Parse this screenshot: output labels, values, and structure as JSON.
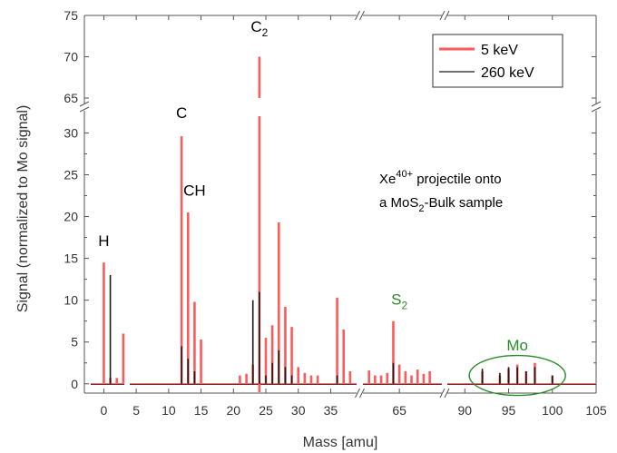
{
  "chart_data": {
    "type": "bar",
    "xlabel": "Mass [amu]",
    "ylabel": "Signal (normalized to Mo signal)",
    "y_lower_range": [
      -1,
      32
    ],
    "y_upper_range": [
      65,
      75
    ],
    "y_lower_ticks": [
      "0",
      "5",
      "10",
      "15",
      "20",
      "25",
      "30"
    ],
    "y_upper_ticks": [
      "65",
      "70",
      "75"
    ],
    "x_panels": [
      {
        "range": [
          -3,
          39
        ],
        "ticks": [
          0,
          5,
          10,
          15,
          20,
          25,
          30,
          35
        ],
        "tick_labels": [
          "0",
          "5",
          "10",
          "15",
          "20",
          "25",
          "30",
          "35"
        ]
      },
      {
        "range": [
          59,
          72
        ],
        "ticks": [
          65
        ],
        "tick_labels": [
          "65"
        ]
      },
      {
        "range": [
          88,
          105
        ],
        "ticks": [
          90,
          95,
          100,
          105
        ],
        "tick_labels": [
          "90",
          "95",
          "100",
          "105"
        ]
      }
    ],
    "series": [
      {
        "name": "5 keV",
        "color": "#ff5a5a",
        "peaks": [
          [
            0,
            14.5
          ],
          [
            1,
            0.7
          ],
          [
            2,
            0.7
          ],
          [
            3,
            6
          ],
          [
            12,
            29.6
          ],
          [
            13,
            20.5
          ],
          [
            14,
            9.8
          ],
          [
            15,
            5.3
          ],
          [
            21,
            1
          ],
          [
            22,
            1.2
          ],
          [
            23,
            2.3
          ],
          [
            24,
            70
          ],
          [
            25,
            5.5
          ],
          [
            26,
            7
          ],
          [
            27,
            19.3
          ],
          [
            28,
            9.2
          ],
          [
            29,
            6.8
          ],
          [
            30,
            2
          ],
          [
            31,
            1.3
          ],
          [
            32,
            1
          ],
          [
            33,
            1
          ],
          [
            36,
            10.3
          ],
          [
            37,
            6.5
          ],
          [
            38,
            1.5
          ],
          [
            60,
            1.6
          ],
          [
            61,
            1
          ],
          [
            62,
            1
          ],
          [
            63,
            1.3
          ],
          [
            64,
            7.5
          ],
          [
            65,
            2.3
          ],
          [
            66,
            1.5
          ],
          [
            67,
            1
          ],
          [
            68,
            1.7
          ],
          [
            69,
            1.2
          ],
          [
            70,
            1.5
          ],
          [
            92,
            1.5
          ],
          [
            94,
            1
          ],
          [
            95,
            1.8
          ],
          [
            96,
            2.3
          ],
          [
            97,
            1.5
          ],
          [
            98,
            2.5
          ],
          [
            100,
            1
          ]
        ]
      },
      {
        "name": "260 keV",
        "color": "#1a1a1a",
        "peaks": [
          [
            1,
            13
          ],
          [
            12,
            4.5
          ],
          [
            13,
            3
          ],
          [
            14,
            1.5
          ],
          [
            23,
            10
          ],
          [
            24,
            11
          ],
          [
            25,
            1
          ],
          [
            26,
            2.5
          ],
          [
            27,
            4
          ],
          [
            28,
            2
          ],
          [
            29,
            1
          ],
          [
            36,
            1
          ],
          [
            64,
            2.5
          ],
          [
            92,
            1.8
          ],
          [
            94,
            1.3
          ],
          [
            95,
            2
          ],
          [
            96,
            2
          ],
          [
            97,
            1.5
          ],
          [
            98,
            2
          ],
          [
            100,
            1
          ]
        ]
      }
    ],
    "annotations": [
      {
        "text": "H",
        "sub": "",
        "x": 0,
        "y": 16.5,
        "color": "#000000"
      },
      {
        "text": "C",
        "sub": "",
        "x": 12,
        "y": 31.8,
        "color": "#000000"
      },
      {
        "text": "CH",
        "sub": "",
        "x": 14,
        "y": 22.5,
        "color": "#000000"
      },
      {
        "text": "C",
        "sub": "2",
        "x": 24,
        "y": 73,
        "color": "#000000"
      },
      {
        "text": "S",
        "sub": "2",
        "x": 65,
        "y": 9.5,
        "color": "#2a8a2a"
      },
      {
        "text": "Mo",
        "sub": "",
        "x": 96,
        "y": 4,
        "color": "#2a8a2a"
      }
    ],
    "note_lines": [
      {
        "pre": "Xe",
        "sup": "40+",
        "post": " projectile onto"
      },
      {
        "pre": "a MoS",
        "sub": "2",
        "post": "-Bulk sample"
      }
    ],
    "legend_position": "top-right"
  }
}
